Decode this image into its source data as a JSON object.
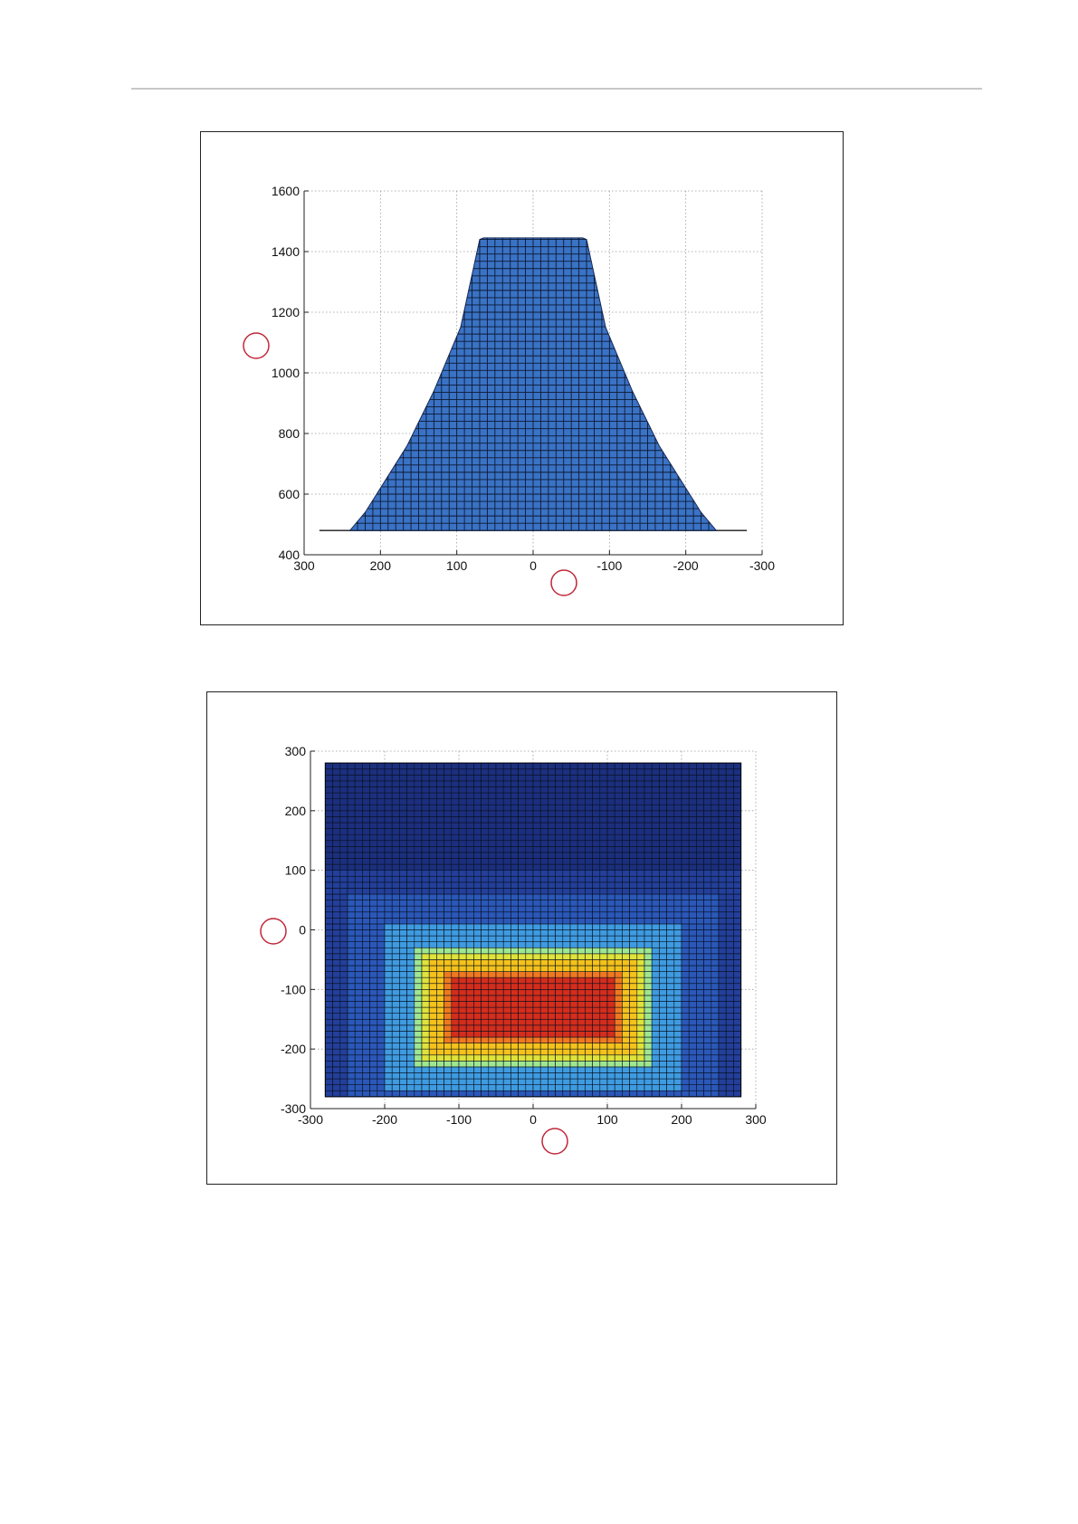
{
  "page": {
    "header_rule": true
  },
  "chart_data": [
    {
      "type": "area",
      "title": "",
      "xlabel": "",
      "ylabel": "",
      "xlim": [
        300,
        -300
      ],
      "ylim": [
        400,
        1600
      ],
      "x_reversed": true,
      "grid": true,
      "x_ticks": [
        300,
        200,
        100,
        0,
        -100,
        -200,
        -300
      ],
      "y_ticks": [
        400,
        600,
        800,
        1000,
        1200,
        1400,
        1600
      ],
      "x_tick_labels": [
        "300",
        "200",
        "100",
        "0",
        "-100",
        "-200",
        "-300"
      ],
      "y_tick_labels": [
        "400",
        "600",
        "800",
        "1000",
        "1200",
        "1400",
        "1600"
      ],
      "baseline": 480,
      "profile": [
        {
          "x": 280,
          "y": 480
        },
        {
          "x": 240,
          "y": 480
        },
        {
          "x": 220,
          "y": 540
        },
        {
          "x": 195,
          "y": 640
        },
        {
          "x": 165,
          "y": 760
        },
        {
          "x": 130,
          "y": 940
        },
        {
          "x": 95,
          "y": 1150
        },
        {
          "x": 70,
          "y": 1440
        },
        {
          "x": 65,
          "y": 1445
        },
        {
          "x": -65,
          "y": 1445
        },
        {
          "x": -70,
          "y": 1440
        },
        {
          "x": -95,
          "y": 1150
        },
        {
          "x": -130,
          "y": 940
        },
        {
          "x": -165,
          "y": 760
        },
        {
          "x": -195,
          "y": 640
        },
        {
          "x": -220,
          "y": 540
        },
        {
          "x": -240,
          "y": 480
        },
        {
          "x": -280,
          "y": 480
        }
      ],
      "mesh_spacing": 10,
      "fill_color": "#3a72c4",
      "mesh_color": "#0d1a33",
      "markers": [
        "y-axis-marker",
        "x-axis-marker"
      ],
      "marker_color": "#c0283a"
    },
    {
      "type": "heatmap",
      "title": "",
      "xlabel": "",
      "ylabel": "",
      "xlim": [
        -300,
        300
      ],
      "ylim": [
        -300,
        300
      ],
      "grid": true,
      "x_ticks": [
        -300,
        -200,
        -100,
        0,
        100,
        200,
        300
      ],
      "y_ticks": [
        300,
        200,
        100,
        0,
        -100,
        -200,
        -300
      ],
      "x_tick_labels": [
        "-300",
        "-200",
        "-100",
        "0",
        "100",
        "200",
        "300"
      ],
      "y_tick_labels": [
        "300",
        "200",
        "100",
        "0",
        "-100",
        "-200",
        "-300"
      ],
      "cell_extent": {
        "x": [
          -280,
          280
        ],
        "y": [
          -280,
          280
        ]
      },
      "cell_size": 10,
      "hot_region": {
        "x": [
          -100,
          100
        ],
        "y": [
          -170,
          -90
        ]
      },
      "color_levels": [
        {
          "level": 0,
          "color": "#1c2f7e"
        },
        {
          "level": 1,
          "color": "#233f99"
        },
        {
          "level": 2,
          "color": "#2b58b8"
        },
        {
          "level": 3,
          "color": "#3f9be0"
        },
        {
          "level": 4,
          "color": "#5fd4e4"
        },
        {
          "level": 5,
          "color": "#9fe690"
        },
        {
          "level": 6,
          "color": "#dfe33a"
        },
        {
          "level": 7,
          "color": "#f4c21a"
        },
        {
          "level": 8,
          "color": "#f07820"
        },
        {
          "level": 9,
          "color": "#d42d1c"
        }
      ],
      "mesh_color": "#081020",
      "markers": [
        "y-axis-marker",
        "x-axis-marker"
      ],
      "marker_color": "#c0283a"
    }
  ]
}
